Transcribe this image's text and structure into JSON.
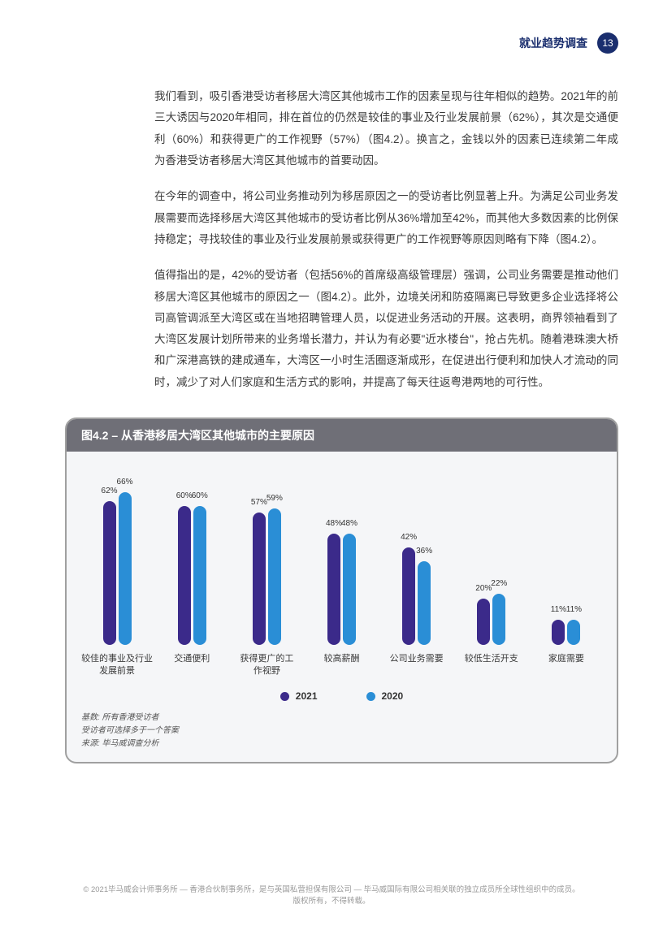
{
  "header": {
    "title": "就业趋势调查",
    "page_number": "13"
  },
  "paragraphs": {
    "p1": "我们看到，吸引香港受访者移居大湾区其他城市工作的因素呈现与往年相似的趋势。2021年的前三大诱因与2020年相同，排在首位的仍然是较佳的事业及行业发展前景（62%），其次是交通便利（60%）和获得更广的工作视野（57%）（图4.2）。换言之，金钱以外的因素已连续第二年成为香港受访者移居大湾区其他城市的首要动因。",
    "p2": "在今年的调查中，将公司业务推动列为移居原因之一的受访者比例显著上升。为满足公司业务发展需要而选择移居大湾区其他城市的受访者比例从36%增加至42%，而其他大多数因素的比例保持稳定；寻找较佳的事业及行业发展前景或获得更广的工作视野等原因则略有下降（图4.2）。",
    "p3": "值得指出的是，42%的受访者（包括56%的首席级高级管理层）强调，公司业务需要是推动他们移居大湾区其他城市的原因之一（图4.2）。此外，边境关闭和防疫隔离已导致更多企业选择将公司高管调派至大湾区或在当地招聘管理人员，以促进业务活动的开展。这表明，商界领袖看到了大湾区发展计划所带来的业务增长潜力，并认为有必要\"近水楼台\"，抢占先机。随着港珠澳大桥和广深港高铁的建成通车，大湾区一小时生活圈逐渐成形，在促进出行便利和加快人才流动的同时，减少了对人们家庭和生活方式的影响，并提高了每天往返粤港两地的可行性。"
  },
  "chart": {
    "type": "bar",
    "title": "图4.2 – 从香港移居大湾区其他城市的主要原因",
    "title_bg": "#6f6f77",
    "card_bg": "#f5f6f8",
    "card_border": "#a0a0a0",
    "color_2021": "#3b2a8a",
    "color_2020": "#2a8ed6",
    "max_value": 70,
    "label_fontsize": 10,
    "categories": [
      {
        "label": "较佳的事业及行业\n发展前景",
        "v2021": 62,
        "v2020": 66
      },
      {
        "label": "交通便利",
        "v2021": 60,
        "v2020": 60
      },
      {
        "label": "获得更广的工\n作视野",
        "v2021": 57,
        "v2020": 59
      },
      {
        "label": "较高薪酬",
        "v2021": 48,
        "v2020": 48
      },
      {
        "label": "公司业务需要",
        "v2021": 42,
        "v2020": 36
      },
      {
        "label": "较低生活开支",
        "v2021": 20,
        "v2020": 22
      },
      {
        "label": "家庭需要",
        "v2021": 11,
        "v2020": 11
      }
    ],
    "legend": {
      "y2021": "2021",
      "y2020": "2020"
    },
    "notes": {
      "n1": "基数: 所有香港受访者",
      "n2": "受访者可选择多于一个答案",
      "n3": "来源: 毕马威调查分析"
    }
  },
  "footer": {
    "line1": "© 2021毕马威会计师事务所 — 香港合伙制事务所，是与英国私营担保有限公司 — 毕马威国际有限公司相关联的独立成员所全球性组织中的成员。",
    "line2": "版权所有，不得转载。"
  }
}
